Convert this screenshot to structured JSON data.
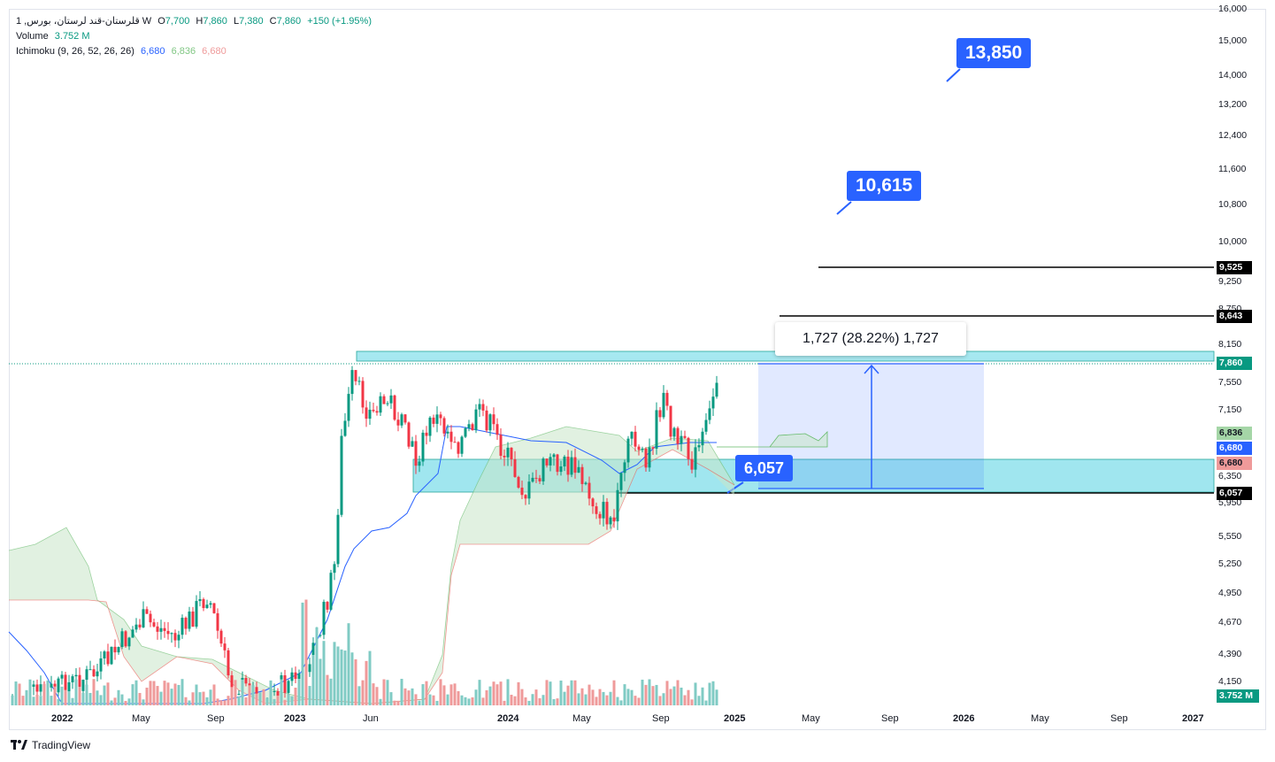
{
  "legend": {
    "symbol": "1 ,قلرستان-قند لرستان، بورس W",
    "open_label": "O",
    "open": "7,700",
    "high_label": "H",
    "high": "7,860",
    "low_label": "L",
    "low": "7,380",
    "close_label": "C",
    "close": "7,860",
    "change": "+150 (+1.95%)",
    "volume_label": "Volume",
    "volume": "3.752 M",
    "ichimoku_label": "Ichimoku (9, 26, 52, 26, 26)",
    "ichimoku_v1": "6,680",
    "ichimoku_v2": "6,836",
    "ichimoku_v3": "6,680"
  },
  "price_axis": [
    "16,000",
    "15,000",
    "14,000",
    "13,200",
    "12,400",
    "11,600",
    "10,800",
    "10,000",
    "9,250",
    "8,750",
    "8,150",
    "7,550",
    "7,150",
    "6,350",
    "5,950",
    "5,550",
    "5,250",
    "4,950",
    "4,670",
    "4,390",
    "4,150"
  ],
  "price_tags": {
    "t9525": "9,525",
    "t8643": "8,643",
    "t7860": "7,860",
    "t6836": "6,836",
    "t6680a": "6,680",
    "t6680b": "6,680",
    "t6057": "6,057",
    "tvol": "3.752 M"
  },
  "time_axis": [
    "2022",
    "May",
    "Sep",
    "2023",
    "Jun",
    "2024",
    "May",
    "Sep",
    "2025",
    "May",
    "Sep",
    "2026",
    "May",
    "Sep",
    "2027"
  ],
  "annotations": {
    "target_1": "13,850",
    "target_2": "10,615",
    "support": "6,057",
    "measure": "1,727 (28.22%) 1,727"
  },
  "brand": {
    "name": "TradingView"
  },
  "colors": {
    "up": "#089981",
    "down": "#f23645",
    "accent": "#2962ff",
    "zone": "#80deea",
    "cloud_green": "#c8e6c9",
    "cloud_red": "#ffcdd2"
  }
}
